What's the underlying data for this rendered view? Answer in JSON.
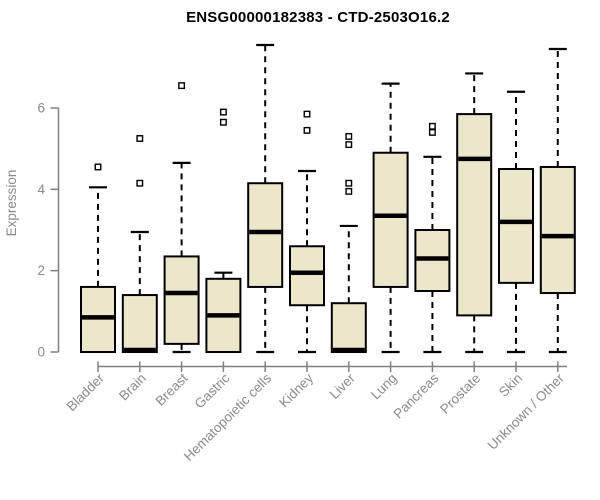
{
  "chart_data": {
    "type": "boxplot",
    "title": "ENSG00000182383 - CTD-2503O16.2",
    "xlabel": "",
    "ylabel": "Expression",
    "yticks": [
      0,
      2,
      4,
      6
    ],
    "ylim": [
      0,
      7.7
    ],
    "grid": false,
    "legend": null,
    "categories": [
      "Bladder",
      "Brain",
      "Breast",
      "Gastric",
      "Hematopoietic cells",
      "Kidney",
      "Liver",
      "Lung",
      "Pancreas",
      "Prostate",
      "Skin",
      "Unknown / Other"
    ],
    "series": [
      {
        "category": "Bladder",
        "whisker_low": 0,
        "q1": 0,
        "median": 0.85,
        "q3": 1.6,
        "whisker_high": 4.05,
        "outliers": [
          4.55
        ]
      },
      {
        "category": "Brain",
        "whisker_low": 0,
        "q1": 0,
        "median": 0.05,
        "q3": 1.4,
        "whisker_high": 2.95,
        "outliers": [
          4.15,
          5.25
        ]
      },
      {
        "category": "Breast",
        "whisker_low": 0,
        "q1": 0.2,
        "median": 1.45,
        "q3": 2.35,
        "whisker_high": 4.65,
        "outliers": [
          6.55
        ]
      },
      {
        "category": "Gastric",
        "whisker_low": 0,
        "q1": 0,
        "median": 0.9,
        "q3": 1.8,
        "whisker_high": 1.95,
        "outliers": [
          5.65,
          5.9
        ]
      },
      {
        "category": "Hematopoietic cells",
        "whisker_low": 0,
        "q1": 1.6,
        "median": 2.95,
        "q3": 4.15,
        "whisker_high": 7.55,
        "outliers": []
      },
      {
        "category": "Kidney",
        "whisker_low": 0,
        "q1": 1.15,
        "median": 1.95,
        "q3": 2.6,
        "whisker_high": 4.45,
        "outliers": [
          5.45,
          5.85
        ]
      },
      {
        "category": "Liver",
        "whisker_low": 0,
        "q1": 0,
        "median": 0.05,
        "q3": 1.2,
        "whisker_high": 3.1,
        "outliers": [
          3.95,
          4.15,
          5.1,
          5.3
        ]
      },
      {
        "category": "Lung",
        "whisker_low": 0,
        "q1": 1.6,
        "median": 3.35,
        "q3": 4.9,
        "whisker_high": 6.6,
        "outliers": []
      },
      {
        "category": "Pancreas",
        "whisker_low": 0,
        "q1": 1.5,
        "median": 2.3,
        "q3": 3.0,
        "whisker_high": 4.8,
        "outliers": [
          5.4,
          5.55
        ]
      },
      {
        "category": "Prostate",
        "whisker_low": 0,
        "q1": 0.9,
        "median": 4.75,
        "q3": 5.85,
        "whisker_high": 6.85,
        "outliers": []
      },
      {
        "category": "Skin",
        "whisker_low": 0,
        "q1": 1.7,
        "median": 3.2,
        "q3": 4.5,
        "whisker_high": 6.4,
        "outliers": []
      },
      {
        "category": "Unknown / Other",
        "whisker_low": 0,
        "q1": 1.45,
        "median": 2.85,
        "q3": 4.55,
        "whisker_high": 7.45,
        "outliers": []
      }
    ],
    "colors": {
      "box_fill": "#ece7cb",
      "box_border": "#000000",
      "median": "#000000",
      "whisker": "#000000",
      "outlier": "#000000",
      "axis": "#808080",
      "tick_label": "#8a8a8a",
      "title": "#000000",
      "background": "#ffffff"
    }
  }
}
